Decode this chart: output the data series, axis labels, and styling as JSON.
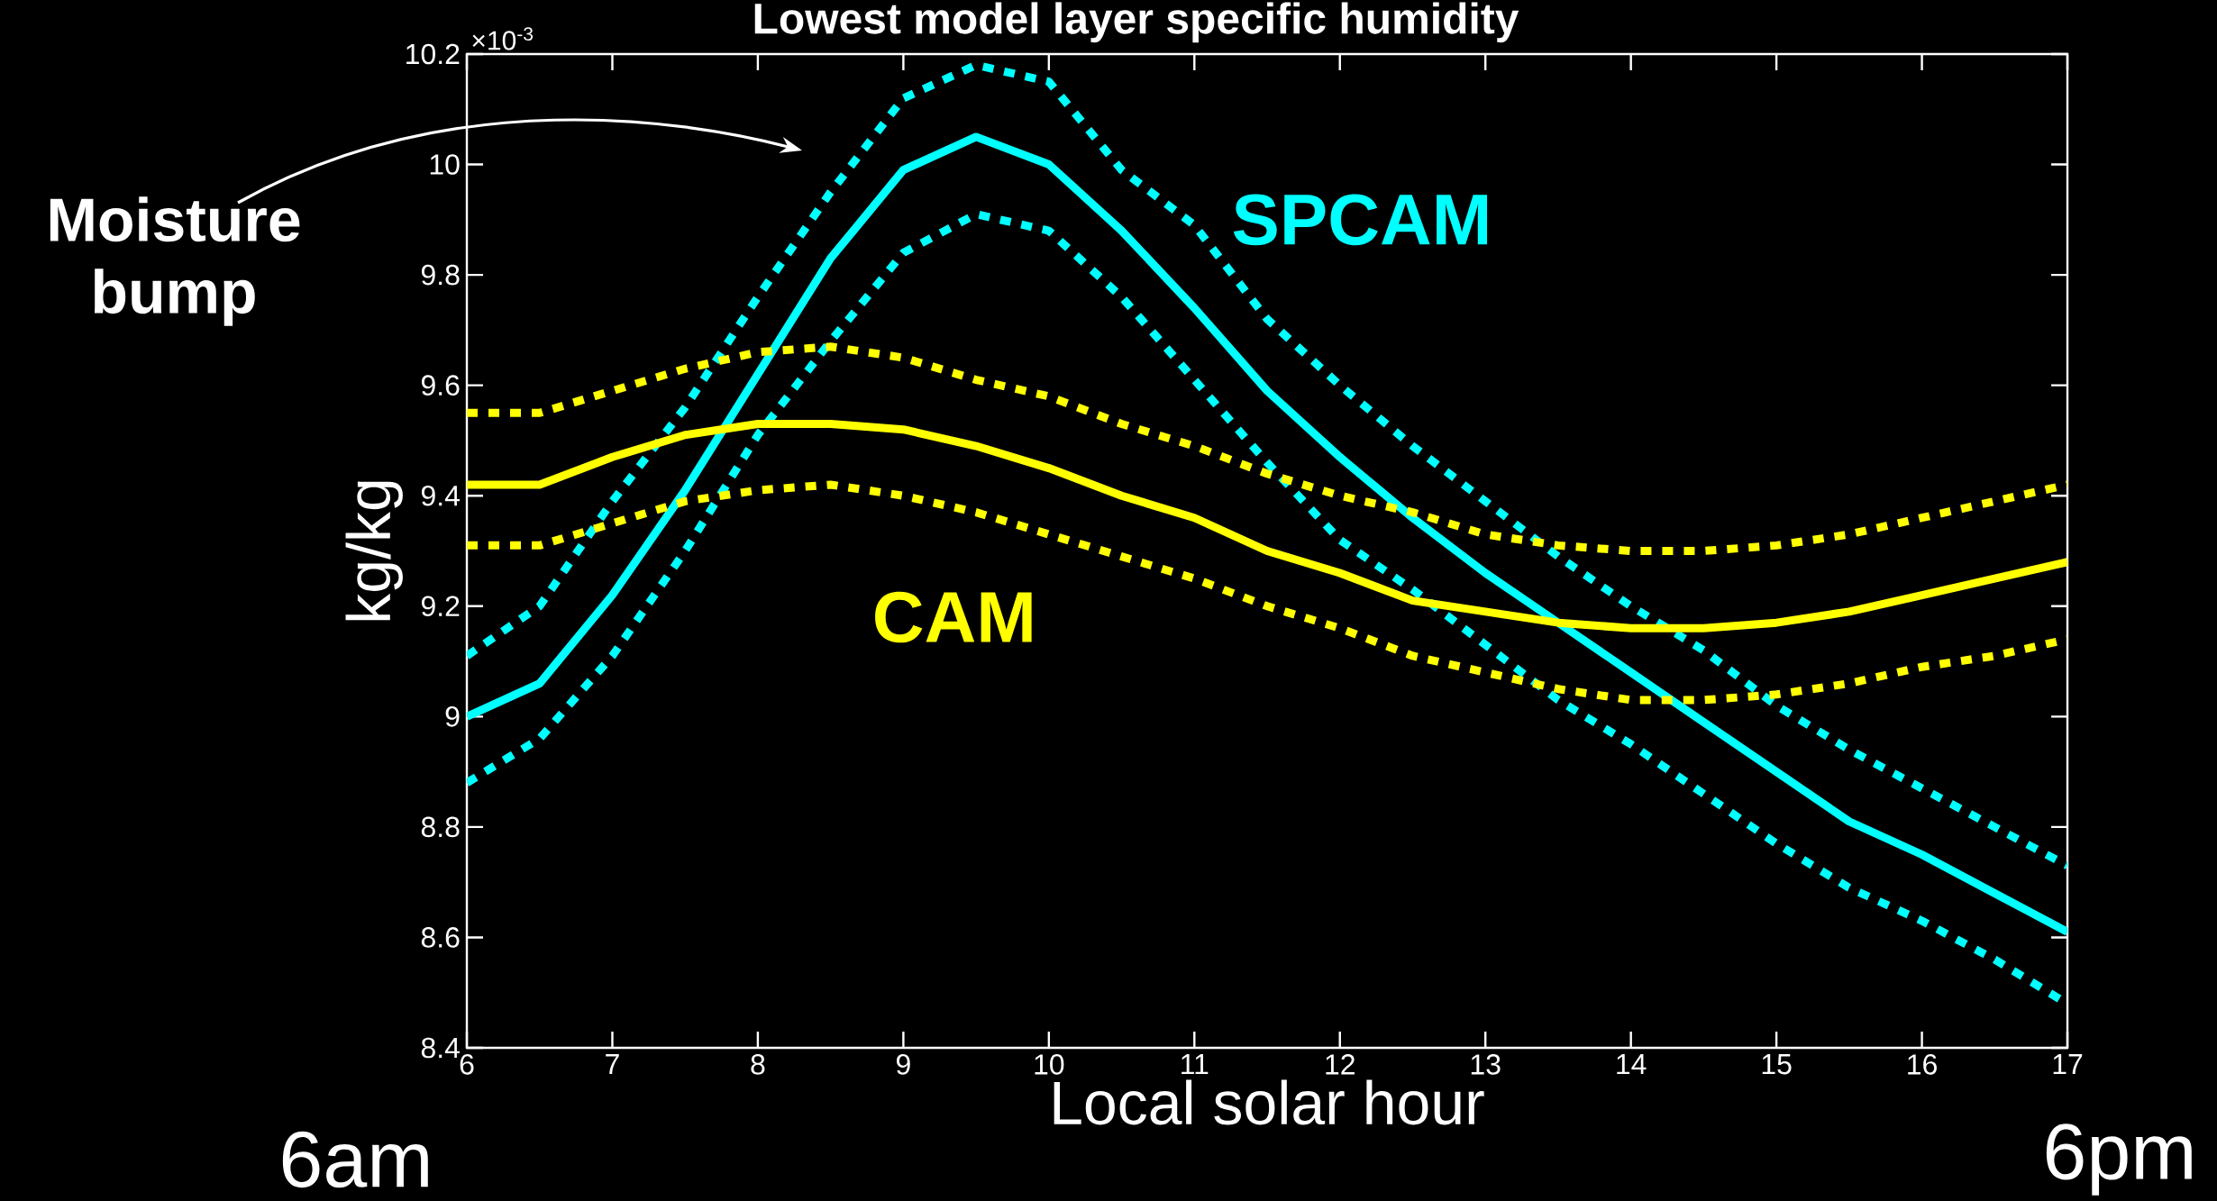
{
  "chart_data": {
    "type": "line",
    "title": "Lowest model layer specific humidity",
    "xlabel": "Local solar hour",
    "ylabel": "kg/kg",
    "annotations": [
      "Moisture bump",
      "6am",
      "6pm",
      "×10$^{-3}$"
    ],
    "x": [
      6,
      6.5,
      7,
      7.5,
      8,
      8.5,
      9,
      9.5,
      10,
      10.5,
      11,
      11.5,
      12,
      12.5,
      13,
      13.5,
      14,
      14.5,
      15,
      15.5,
      16,
      16.5,
      17
    ],
    "series": [
      {
        "name": "SPCAM",
        "color": "#00ffff",
        "line_style": "solid",
        "values": [
          9.0,
          9.06,
          9.22,
          9.41,
          9.62,
          9.83,
          9.99,
          10.05,
          10.0,
          9.88,
          9.74,
          9.59,
          9.47,
          9.36,
          9.26,
          9.17,
          9.08,
          8.99,
          8.9,
          8.81,
          8.75,
          8.68,
          8.61
        ]
      },
      {
        "color": "#00ffff",
        "line_style": "dotted",
        "values": [
          9.11,
          9.2,
          9.39,
          9.56,
          9.76,
          9.95,
          10.12,
          10.18,
          10.15,
          9.99,
          9.89,
          9.72,
          9.6,
          9.49,
          9.39,
          9.29,
          9.2,
          9.12,
          9.02,
          8.94,
          8.87,
          8.8,
          8.73
        ]
      },
      {
        "color": "#00ffff",
        "line_style": "dotted",
        "values": [
          8.88,
          8.96,
          9.11,
          9.3,
          9.51,
          9.68,
          9.84,
          9.91,
          9.88,
          9.76,
          9.61,
          9.46,
          9.32,
          9.23,
          9.13,
          9.03,
          8.95,
          8.86,
          8.77,
          8.69,
          8.63,
          8.56,
          8.48
        ]
      },
      {
        "name": "CAM",
        "color": "#ffff00",
        "line_style": "solid",
        "values": [
          9.42,
          9.42,
          9.47,
          9.51,
          9.53,
          9.53,
          9.52,
          9.49,
          9.45,
          9.4,
          9.36,
          9.3,
          9.26,
          9.21,
          9.19,
          9.17,
          9.16,
          9.16,
          9.17,
          9.19,
          9.22,
          9.25,
          9.28
        ]
      },
      {
        "color": "#ffff00",
        "line_style": "dotted",
        "values": [
          9.55,
          9.55,
          9.59,
          9.63,
          9.66,
          9.67,
          9.65,
          9.61,
          9.58,
          9.53,
          9.49,
          9.44,
          9.4,
          9.37,
          9.33,
          9.31,
          9.3,
          9.3,
          9.31,
          9.33,
          9.36,
          9.39,
          9.42
        ]
      },
      {
        "color": "#ffff00",
        "line_style": "dotted",
        "values": [
          9.31,
          9.31,
          9.35,
          9.39,
          9.41,
          9.42,
          9.4,
          9.37,
          9.33,
          9.29,
          9.25,
          9.2,
          9.16,
          9.11,
          9.08,
          9.05,
          9.03,
          9.03,
          9.04,
          9.06,
          9.09,
          9.11,
          9.14
        ]
      }
    ],
    "xlim": [
      6,
      17
    ],
    "ylim": [
      8.4,
      10.2
    ],
    "xticks": [
      6,
      7,
      8,
      9,
      10,
      11,
      12,
      13,
      14,
      15,
      16,
      17
    ],
    "yticks": [
      8.4,
      8.6,
      8.8,
      9,
      9.2,
      9.4,
      9.6,
      9.8,
      10,
      10.2
    ],
    "grid": false,
    "legend": false,
    "marker": "none"
  }
}
